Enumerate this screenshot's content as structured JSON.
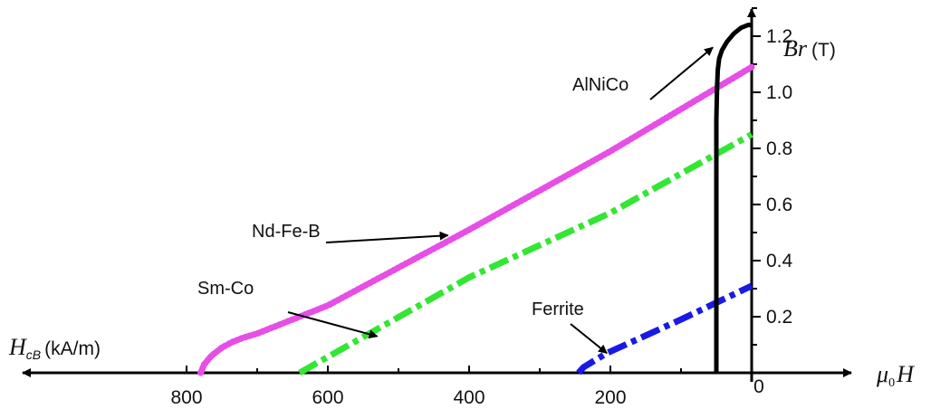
{
  "chart_data": {
    "type": "line",
    "x_axis": {
      "label": "H",
      "label_prefix": "μ",
      "label_prefix_sub": "0",
      "tick_labels": [
        "800",
        "600",
        "400",
        "200",
        "0"
      ],
      "ticks": [
        800,
        600,
        400,
        200,
        0
      ],
      "range": [
        0,
        900
      ],
      "direction": "reversed"
    },
    "x_left_label": {
      "symbol": "H",
      "sub": "cB",
      "unit": "(kA/m)"
    },
    "y_axis": {
      "label": "Br",
      "unit": "(T)",
      "tick_labels": [
        "0.2",
        "0.4",
        "0.6",
        "0.8",
        "1.0",
        "1.2"
      ],
      "ticks": [
        0.2,
        0.4,
        0.6,
        0.8,
        1.0,
        1.2
      ],
      "range": [
        0,
        1.38
      ]
    },
    "series": [
      {
        "name": "Nd-Fe-B",
        "color": "#e64ee6",
        "style": "dotted",
        "x": [
          780,
          775,
          765,
          750,
          735,
          720,
          700,
          600,
          400,
          200,
          0
        ],
        "y": [
          0,
          0.03,
          0.06,
          0.09,
          0.11,
          0.125,
          0.14,
          0.24,
          0.51,
          0.79,
          1.09
        ]
      },
      {
        "name": "Sm-Co",
        "color": "#33e633",
        "style": "dashdot",
        "x": [
          640,
          400,
          200,
          0
        ],
        "y": [
          0,
          0.34,
          0.57,
          0.85
        ]
      },
      {
        "name": "Ferrite",
        "color": "#1a1ae6",
        "style": "dashdot",
        "x": [
          245,
          238,
          225,
          205,
          170,
          100,
          0
        ],
        "y": [
          0,
          0.02,
          0.04,
          0.07,
          0.11,
          0.19,
          0.31
        ]
      },
      {
        "name": "AlNiCo",
        "color": "#000000",
        "style": "solid",
        "x": [
          50,
          50,
          49,
          48,
          46,
          42,
          35,
          25,
          15,
          5,
          0
        ],
        "y": [
          0,
          0.9,
          1.02,
          1.08,
          1.12,
          1.15,
          1.18,
          1.21,
          1.23,
          1.24,
          1.24
        ]
      }
    ],
    "annotations": [
      {
        "text": "AlNiCo",
        "arrow_to": [
          55,
          1.16
        ]
      },
      {
        "text": "Nd-Fe-B",
        "arrow_to": [
          430,
          0.49
        ]
      },
      {
        "text": "Sm-Co",
        "arrow_to": [
          530,
          0.13
        ]
      },
      {
        "text": "Ferrite",
        "arrow_to": [
          205,
          0.07
        ]
      }
    ],
    "axis_color": "#000000",
    "grid": false,
    "legend": "none"
  }
}
